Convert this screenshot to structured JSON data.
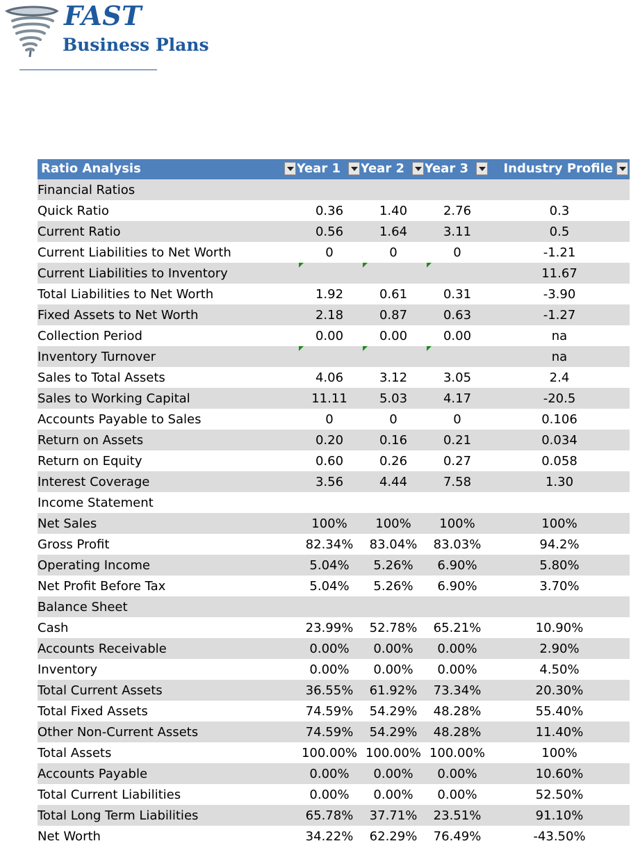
{
  "brand": {
    "name_line1": "FAST",
    "name_line2": "Business Plans",
    "icon": "tornado-icon",
    "color": "#1f5a9e"
  },
  "table": {
    "headers": [
      "Ratio Analysis",
      "Year 1",
      "Year 2",
      "Year 3",
      "Industry Profile"
    ],
    "header_color": "#4f81bd",
    "rows": [
      {
        "label": "Financial Ratios",
        "y1": "",
        "y2": "",
        "y3": "",
        "ind": ""
      },
      {
        "label": "Quick Ratio",
        "y1": "0.36",
        "y2": "1.40",
        "y3": "2.76",
        "ind": "0.3"
      },
      {
        "label": "Current Ratio",
        "y1": "0.56",
        "y2": "1.64",
        "y3": "3.11",
        "ind": "0.5"
      },
      {
        "label": "Current Liabilities to Net Worth",
        "y1": "0",
        "y2": "0",
        "y3": "0",
        "ind": "-1.21"
      },
      {
        "label": "Current Liabilities to Inventory",
        "y1": "",
        "y2": "",
        "y3": "",
        "ind": "11.67",
        "flag": true
      },
      {
        "label": "Total Liabilities to Net Worth",
        "y1": "1.92",
        "y2": "0.61",
        "y3": "0.31",
        "ind": "-3.90"
      },
      {
        "label": "Fixed Assets to Net Worth",
        "y1": "2.18",
        "y2": "0.87",
        "y3": "0.63",
        "ind": "-1.27"
      },
      {
        "label": "Collection Period",
        "y1": "0.00",
        "y2": "0.00",
        "y3": "0.00",
        "ind": "na"
      },
      {
        "label": "Inventory Turnover",
        "y1": "",
        "y2": "",
        "y3": "",
        "ind": "na",
        "flag": true
      },
      {
        "label": "Sales to Total Assets",
        "y1": "4.06",
        "y2": "3.12",
        "y3": "3.05",
        "ind": "2.4"
      },
      {
        "label": "Sales to Working Capital",
        "y1": "11.11",
        "y2": "5.03",
        "y3": "4.17",
        "ind": "-20.5"
      },
      {
        "label": "Accounts Payable to Sales",
        "y1": "0",
        "y2": "0",
        "y3": "0",
        "ind": "0.106"
      },
      {
        "label": "Return on Assets",
        "y1": "0.20",
        "y2": "0.16",
        "y3": "0.21",
        "ind": "0.034"
      },
      {
        "label": "Return on Equity",
        "y1": "0.60",
        "y2": "0.26",
        "y3": "0.27",
        "ind": "0.058"
      },
      {
        "label": "Interest Coverage",
        "y1": "3.56",
        "y2": "4.44",
        "y3": "7.58",
        "ind": "1.30"
      },
      {
        "label": "Income Statement",
        "y1": "",
        "y2": "",
        "y3": "",
        "ind": ""
      },
      {
        "label": "Net Sales",
        "y1": "100%",
        "y2": "100%",
        "y3": "100%",
        "ind": "100%"
      },
      {
        "label": "Gross Profit",
        "y1": "82.34%",
        "y2": "83.04%",
        "y3": "83.03%",
        "ind": "94.2%"
      },
      {
        "label": "Operating Income",
        "y1": "5.04%",
        "y2": "5.26%",
        "y3": "6.90%",
        "ind": "5.80%"
      },
      {
        "label": "Net Profit Before Tax",
        "y1": "5.04%",
        "y2": "5.26%",
        "y3": "6.90%",
        "ind": "3.70%"
      },
      {
        "label": "Balance Sheet",
        "y1": "",
        "y2": "",
        "y3": "",
        "ind": ""
      },
      {
        "label": "Cash",
        "y1": "23.99%",
        "y2": "52.78%",
        "y3": "65.21%",
        "ind": "10.90%"
      },
      {
        "label": "Accounts Receivable",
        "y1": "0.00%",
        "y2": "0.00%",
        "y3": "0.00%",
        "ind": "2.90%"
      },
      {
        "label": "Inventory",
        "y1": "0.00%",
        "y2": "0.00%",
        "y3": "0.00%",
        "ind": "4.50%"
      },
      {
        "label": "Total Current Assets",
        "y1": "36.55%",
        "y2": "61.92%",
        "y3": "73.34%",
        "ind": "20.30%"
      },
      {
        "label": "Total Fixed Assets",
        "y1": "74.59%",
        "y2": "54.29%",
        "y3": "48.28%",
        "ind": "55.40%"
      },
      {
        "label": "Other Non-Current Assets",
        "y1": "74.59%",
        "y2": "54.29%",
        "y3": "48.28%",
        "ind": "11.40%"
      },
      {
        "label": "Total Assets",
        "y1": "100.00%",
        "y2": "100.00%",
        "y3": "100.00%",
        "ind": "100%"
      },
      {
        "label": "Accounts Payable",
        "y1": "0.00%",
        "y2": "0.00%",
        "y3": "0.00%",
        "ind": "10.60%"
      },
      {
        "label": "Total Current Liabilities",
        "y1": "0.00%",
        "y2": "0.00%",
        "y3": "0.00%",
        "ind": "52.50%"
      },
      {
        "label": "Total Long Term Liabilities",
        "y1": "65.78%",
        "y2": "37.71%",
        "y3": "23.51%",
        "ind": "91.10%"
      },
      {
        "label": "Net Worth",
        "y1": "34.22%",
        "y2": "62.29%",
        "y3": "76.49%",
        "ind": "-43.50%"
      }
    ]
  }
}
